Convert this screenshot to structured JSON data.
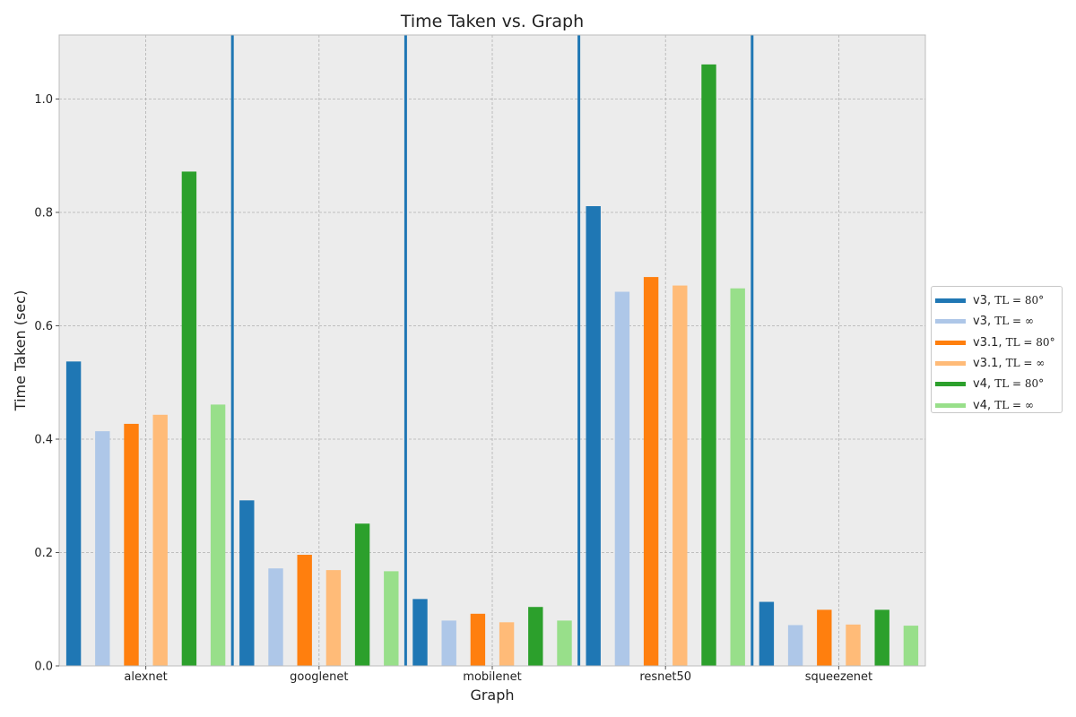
{
  "chart_data": {
    "type": "bar",
    "title": "Time Taken vs. Graph",
    "xlabel": "Graph",
    "ylabel": "Time Taken (sec)",
    "categories": [
      "alexnet",
      "googlenet",
      "mobilenet",
      "resnet50",
      "squeezenet"
    ],
    "ylim": [
      0,
      1.113
    ],
    "yticks": [
      "0.0",
      "0.2",
      "0.4",
      "0.6",
      "0.8",
      "1.0"
    ],
    "grid": true,
    "legend_position": "right",
    "series": [
      {
        "name": "v3, TL = 80°",
        "legend_prefix": "v3,",
        "legend_math": "TL = 80°",
        "color": "#1f77b4",
        "values": [
          0.537,
          0.292,
          0.118,
          0.811,
          0.113
        ]
      },
      {
        "name": "v3, TL = ∞",
        "legend_prefix": "v3,",
        "legend_math": "TL = ∞",
        "color": "#aec7e8",
        "values": [
          0.414,
          0.172,
          0.08,
          0.66,
          0.072
        ]
      },
      {
        "name": "v3.1, TL = 80°",
        "legend_prefix": "v3.1,",
        "legend_math": "TL = 80°",
        "color": "#ff7f0e",
        "values": [
          0.427,
          0.196,
          0.092,
          0.686,
          0.099
        ]
      },
      {
        "name": "v3.1, TL = ∞",
        "legend_prefix": "v3.1,",
        "legend_math": "TL = ∞",
        "color": "#ffbb78",
        "values": [
          0.443,
          0.169,
          0.077,
          0.671,
          0.073
        ]
      },
      {
        "name": "v4, TL = 80°",
        "legend_prefix": "v4,",
        "legend_math": "TL = 80°",
        "color": "#2ca02c",
        "values": [
          0.872,
          0.251,
          0.104,
          1.061,
          0.099
        ]
      },
      {
        "name": "v4, TL = ∞",
        "legend_prefix": "v4,",
        "legend_math": "TL = ∞",
        "color": "#98df8a",
        "values": [
          0.461,
          0.167,
          0.08,
          0.666,
          0.071
        ]
      }
    ],
    "group_separator_color": "#1f77b4"
  }
}
